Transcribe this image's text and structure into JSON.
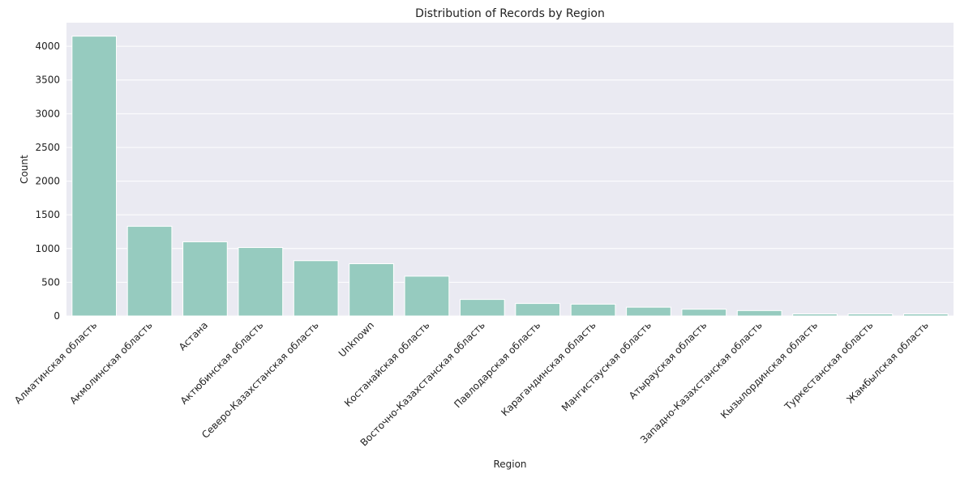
{
  "chart_data": {
    "type": "bar",
    "title": "Distribution of Records by Region",
    "xlabel": "Region",
    "ylabel": "Count",
    "ylim": [
      0,
      4350
    ],
    "yticks": [
      0,
      500,
      1000,
      1500,
      2000,
      2500,
      3000,
      3500,
      4000
    ],
    "grid": true,
    "legend": "none",
    "bar_color": "#96cbbf",
    "background_color": "#eaeaf2",
    "categories": [
      "Алматинская область",
      "Акмолинская область",
      "Астана",
      "Актюбинская область",
      "Северо-Казахстанская область",
      "Unknown",
      "Костанайская область",
      "Восточно-Казахстанская область",
      "Павлодарская область",
      "Карагандинская область",
      "Мангистауская область",
      "Атырауская область",
      "Западно-Казахстанская область",
      "Кызылординская область",
      "Туркестанская область",
      "Жамбылская область"
    ],
    "values": [
      4150,
      1330,
      1100,
      1015,
      820,
      775,
      590,
      245,
      185,
      175,
      130,
      100,
      80,
      30,
      30,
      30
    ]
  }
}
